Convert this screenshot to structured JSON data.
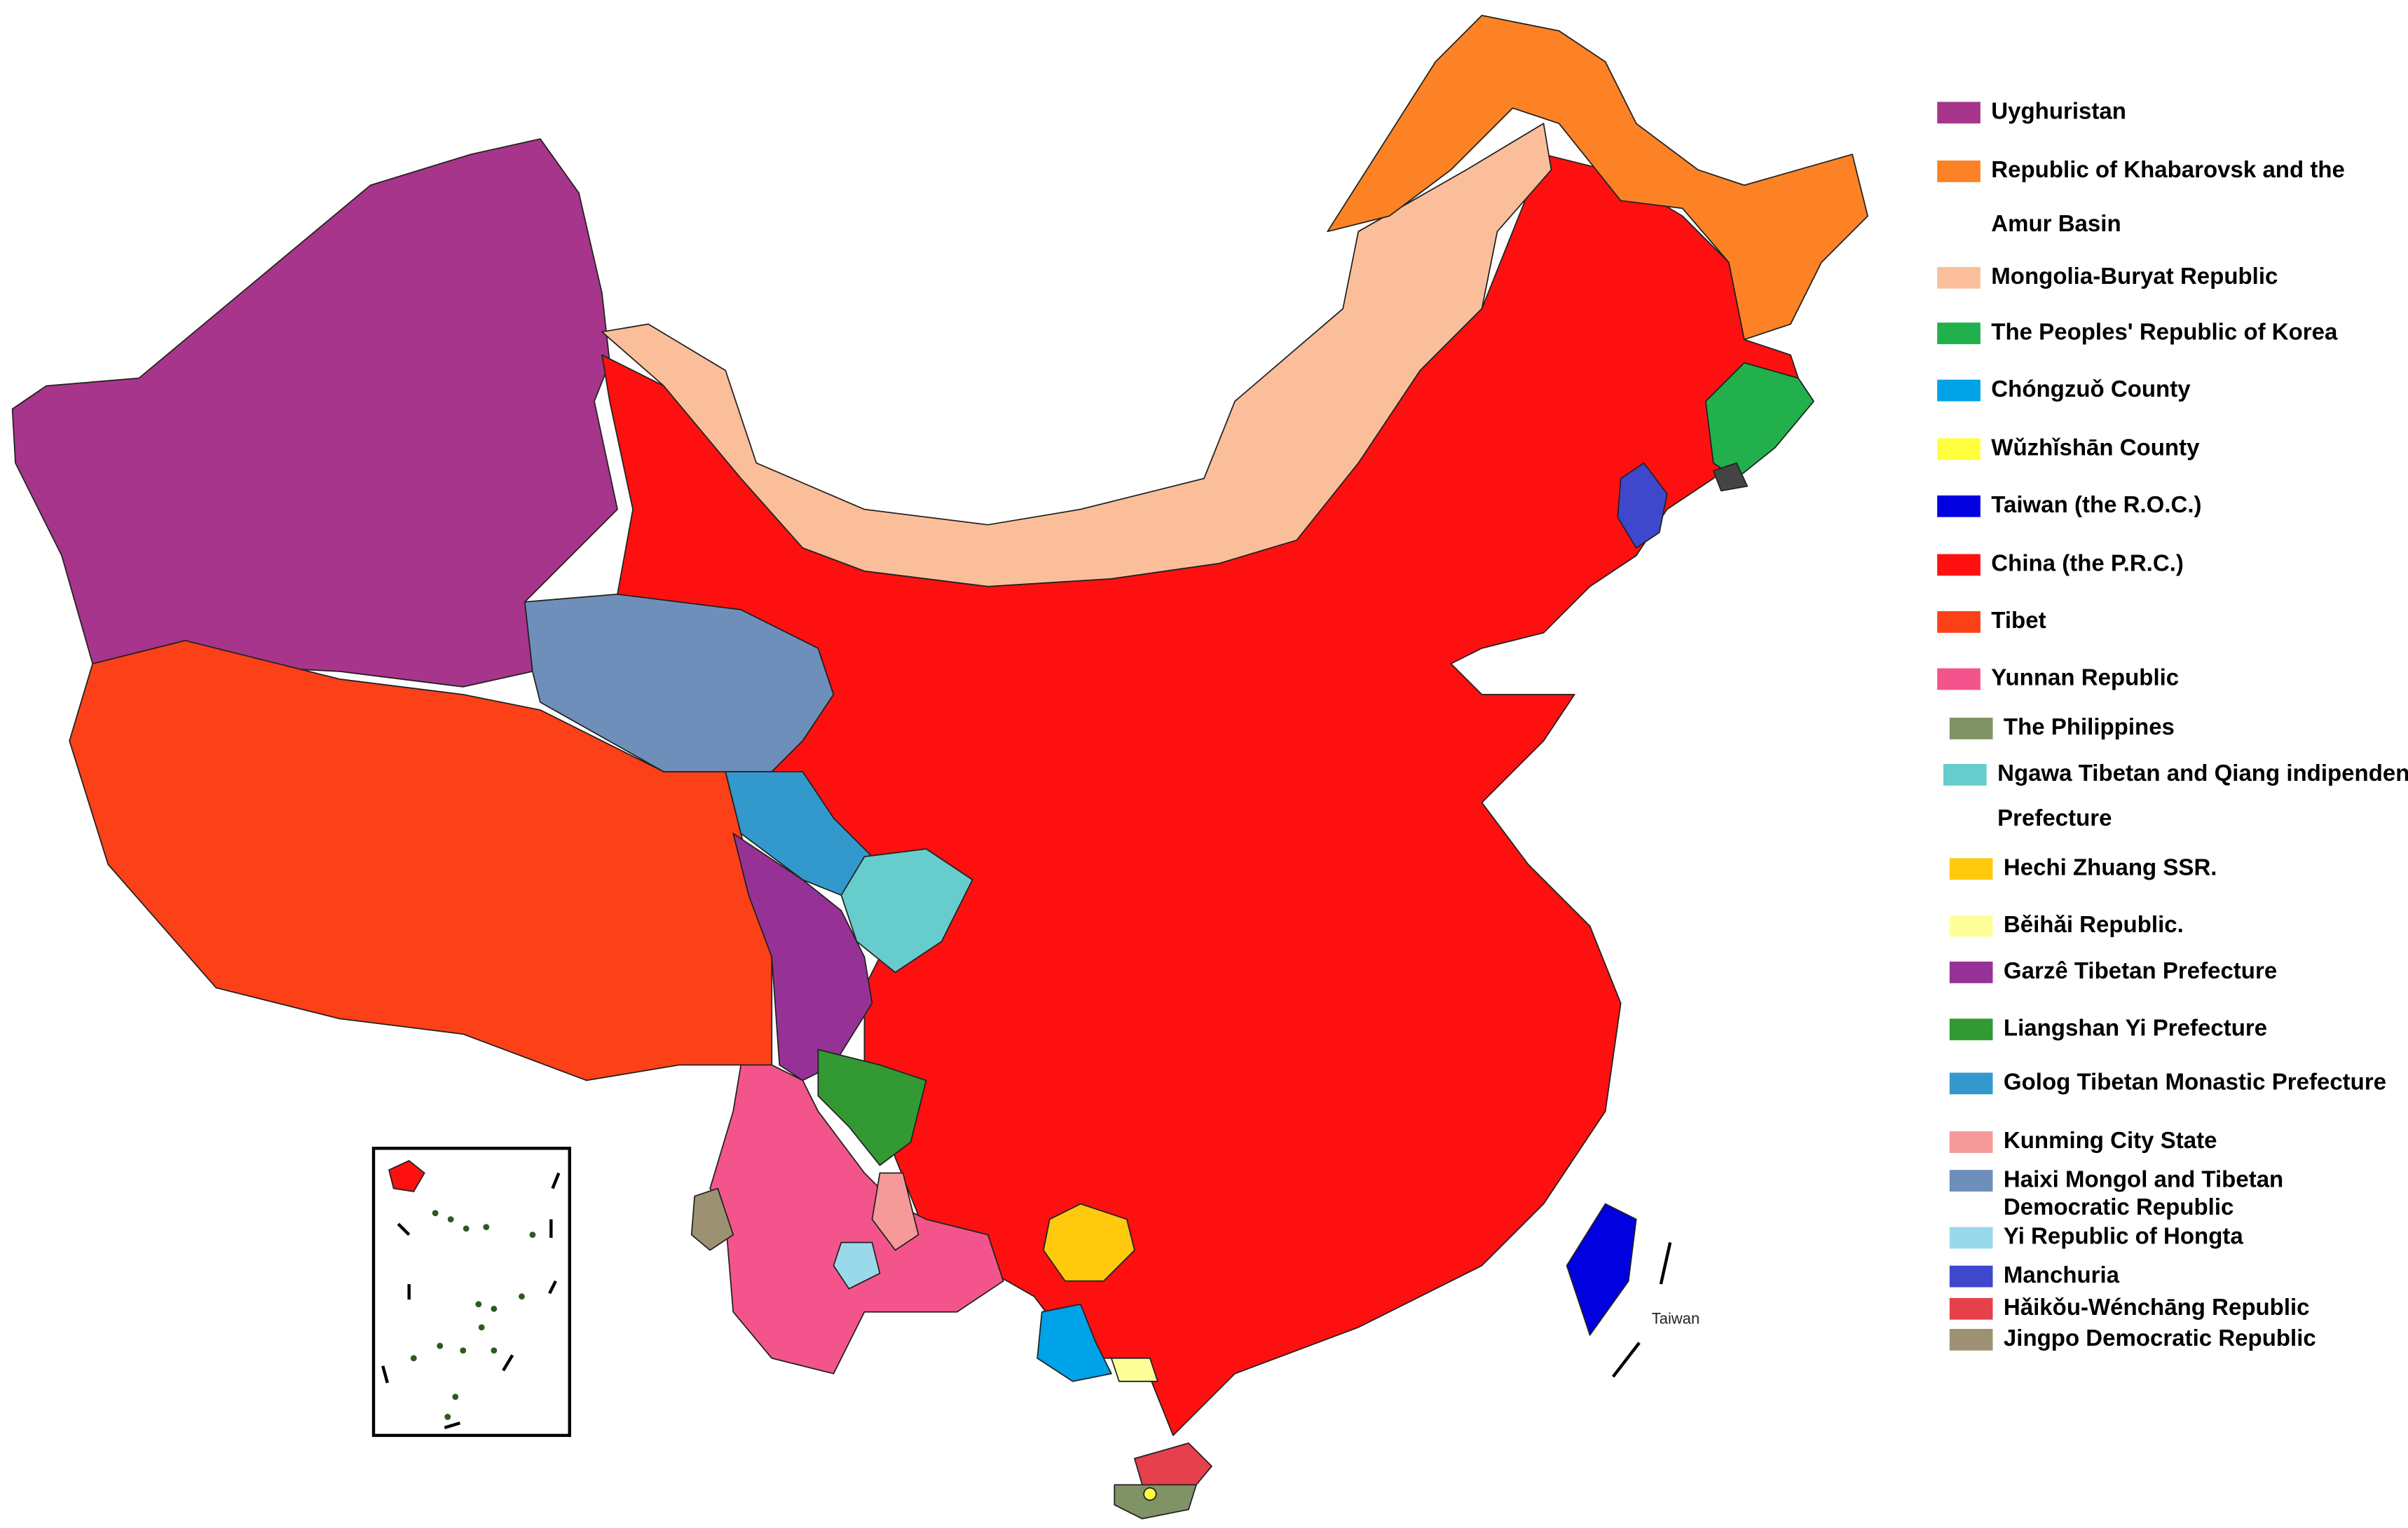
{
  "map_label": "Taiwan",
  "legend": [
    {
      "lines": [
        "Uyghuristan"
      ],
      "color": "#a7358b"
    },
    {
      "lines": [
        "Republic of Khabarovsk and the",
        "Amur Basin"
      ],
      "color": "#fc8225"
    },
    {
      "lines": [
        "Mongolia-Buryat Republic"
      ],
      "color": "#fabf9a"
    },
    {
      "lines": [
        "The Peoples' Republic of Korea"
      ],
      "color": "#21b04c"
    },
    {
      "lines": [
        "Chóngzuǒ County"
      ],
      "color": "#00a2e8"
    },
    {
      "lines": [
        "Wǔzhǐshān County"
      ],
      "color": "#ffff40"
    },
    {
      "lines": [
        "Taiwan (the R.O.C.)"
      ],
      "color": "#0000e0"
    },
    {
      "lines": [
        "China (the P.R.C.)"
      ],
      "color": "#ff1010"
    },
    {
      "lines": [
        "Tibet"
      ],
      "color": "#fc4018"
    },
    {
      "lines": [
        "Yunnan Republic"
      ],
      "color": "#f4548c"
    },
    {
      "lines": [
        "The Philippines"
      ],
      "color": "#7f9364"
    },
    {
      "lines": [
        "Ngawa Tibetan and Qiang indipenden",
        "Prefecture"
      ],
      "color": "#66cccc"
    },
    {
      "lines": [
        "Hechi Zhuang SSR."
      ],
      "color": "#ffc90e"
    },
    {
      "lines": [
        "Běihǎi Republic."
      ],
      "color": "#ffff99"
    },
    {
      "lines": [
        "Garzê Tibetan Prefecture"
      ],
      "color": "#963296"
    },
    {
      "lines": [
        "Liangshan Yi Prefecture"
      ],
      "color": "#339933"
    },
    {
      "lines": [
        "Golog Tibetan Monastic Prefecture"
      ],
      "color": "#3399cc"
    },
    {
      "lines": [
        "Kunming City State"
      ],
      "color": "#f59999"
    },
    {
      "lines": [
        "Haixi Mongol and Tibetan",
        "Democratic Republic"
      ],
      "color": "#6f8fbb"
    },
    {
      "lines": [
        "Yi Republic of Hongta"
      ],
      "color": "#99d9ea"
    },
    {
      "lines": [
        "Manchuria"
      ],
      "color": "#3f48cc"
    },
    {
      "lines": [
        "Hǎikǒu-Wénchāng Republic"
      ],
      "color": "#e5404c"
    },
    {
      "lines": [
        "Jingpo Democratic Republic"
      ],
      "color": "#9c9273"
    }
  ]
}
